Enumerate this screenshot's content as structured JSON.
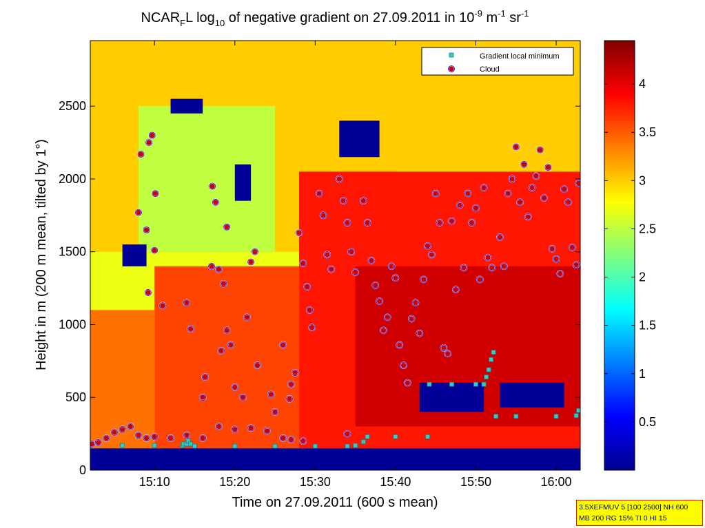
{
  "figure": {
    "title": {
      "prefix": "NCAR",
      "sub1": "F",
      "mid1": "L log",
      "sub2": "10",
      "mid2": " of negative gradient on 27.09.2011 in 10",
      "sup1": "-9",
      "mid3": " m",
      "sup2": "-1",
      "mid4": " sr",
      "sup3": "-1"
    },
    "info_box": {
      "line1": "3.5XEFMUV 5 [100 2500] NH 600",
      "line2": "MB 200 RG 15% TI 0 HI 15"
    }
  },
  "chart_data": {
    "type": "heatmap",
    "title": "NCAR_F L log10 of negative gradient on 27.09.2011 in 10^-9 m^-1 sr^-1",
    "xlabel": "Time on 27.09.2011 (600 s mean)",
    "ylabel": "Height in m (200 m mean, tilted by 1°)",
    "x_unit": "time of day",
    "x_range": [
      "15:02",
      "16:03"
    ],
    "x_ticks": [
      "15:10",
      "15:20",
      "15:30",
      "15:40",
      "15:50",
      "16:00"
    ],
    "x_tick_minutes": [
      10,
      20,
      30,
      40,
      50,
      60
    ],
    "x_range_minutes": [
      2,
      63
    ],
    "ylim": [
      0,
      2950
    ],
    "y_ticks": [
      0,
      500,
      1000,
      1500,
      2000,
      2500
    ],
    "colorbar": {
      "colormap": "jet",
      "range": [
        0,
        4.45
      ],
      "ticks": [
        0.5,
        1,
        1.5,
        2,
        2.5,
        3,
        3.5,
        4
      ],
      "tick_labels": [
        "0.5",
        "1",
        "1.5",
        "2",
        "2.5",
        "3",
        "3.5",
        "4"
      ],
      "colors": [
        "#00008f",
        "#0000ff",
        "#00ffff",
        "#ffff00",
        "#ff0000",
        "#800000"
      ]
    },
    "legend": {
      "placement": "top-right",
      "entries": [
        {
          "name": "Gradient local minimum",
          "marker": "square",
          "color": "#33cccc"
        },
        {
          "name": "Cloud",
          "marker": "circle",
          "color": "#cc0000",
          "edge": "#0000ff"
        }
      ]
    },
    "series": [
      {
        "name": "Gradient local minimum",
        "marker": "square",
        "color": "#33cccc",
        "points": [
          [
            2.0,
            170
          ],
          [
            6.0,
            170
          ],
          [
            10.0,
            170
          ],
          [
            13.5,
            170
          ],
          [
            13.6,
            180
          ],
          [
            14.0,
            180
          ],
          [
            14.2,
            200
          ],
          [
            14.5,
            180
          ],
          [
            15.0,
            165
          ],
          [
            20.0,
            165
          ],
          [
            25.0,
            165
          ],
          [
            30.0,
            165
          ],
          [
            34.0,
            165
          ],
          [
            35.0,
            170
          ],
          [
            36.0,
            195
          ],
          [
            36.5,
            230
          ],
          [
            40.0,
            230
          ],
          [
            44.0,
            230
          ],
          [
            44.2,
            590
          ],
          [
            47.0,
            590
          ],
          [
            50.0,
            590
          ],
          [
            51.0,
            590
          ],
          [
            51.3,
            640
          ],
          [
            51.6,
            690
          ],
          [
            51.9,
            760
          ],
          [
            52.2,
            810
          ],
          [
            52.5,
            370
          ],
          [
            55.0,
            370
          ],
          [
            60.0,
            370
          ],
          [
            62.5,
            375
          ],
          [
            62.8,
            410
          ]
        ]
      },
      {
        "name": "Cloud",
        "marker": "circle",
        "color": "#cc0000",
        "points": [
          [
            2.2,
            180
          ],
          [
            3.0,
            190
          ],
          [
            4.0,
            220
          ],
          [
            5.0,
            260
          ],
          [
            6.0,
            280
          ],
          [
            7.0,
            300
          ],
          [
            8.0,
            240
          ],
          [
            9.0,
            220
          ],
          [
            10.0,
            230
          ],
          [
            12.0,
            220
          ],
          [
            14.0,
            240
          ],
          [
            16.0,
            220
          ],
          [
            18.0,
            300
          ],
          [
            20.0,
            280
          ],
          [
            22.0,
            290
          ],
          [
            24.0,
            270
          ],
          [
            26.0,
            220
          ],
          [
            27.0,
            210
          ],
          [
            28.5,
            200
          ],
          [
            34.0,
            250
          ],
          [
            8.3,
            2170
          ],
          [
            9.3,
            2250
          ],
          [
            9.7,
            2300
          ],
          [
            10.1,
            1900
          ],
          [
            8.0,
            1770
          ],
          [
            9.0,
            1650
          ],
          [
            10.0,
            1510
          ],
          [
            9.2,
            1220
          ],
          [
            11.0,
            1130
          ],
          [
            14.0,
            1150
          ],
          [
            14.5,
            970
          ],
          [
            16.3,
            640
          ],
          [
            16.0,
            500
          ],
          [
            17.2,
            1950
          ],
          [
            17.6,
            1840
          ],
          [
            17.1,
            1400
          ],
          [
            18.0,
            1380
          ],
          [
            18.6,
            1280
          ],
          [
            19.0,
            1670
          ],
          [
            19.0,
            960
          ],
          [
            18.3,
            820
          ],
          [
            19.5,
            860
          ],
          [
            20.0,
            570
          ],
          [
            21.0,
            500
          ],
          [
            22.0,
            1430
          ],
          [
            22.5,
            1500
          ],
          [
            21.5,
            1050
          ],
          [
            22.8,
            720
          ],
          [
            24.5,
            520
          ],
          [
            25.0,
            400
          ],
          [
            26.0,
            860
          ],
          [
            27.0,
            590
          ],
          [
            27.5,
            670
          ],
          [
            26.8,
            490
          ],
          [
            28.0,
            1630
          ],
          [
            28.5,
            1420
          ],
          [
            29.0,
            1260
          ],
          [
            29.3,
            1100
          ],
          [
            29.6,
            980
          ],
          [
            30.5,
            1900
          ],
          [
            31.0,
            1750
          ],
          [
            31.5,
            1480
          ],
          [
            32.0,
            1380
          ],
          [
            33.0,
            2000
          ],
          [
            33.5,
            1850
          ],
          [
            34.0,
            1700
          ],
          [
            34.5,
            1500
          ],
          [
            35.0,
            1360
          ],
          [
            36.0,
            1850
          ],
          [
            36.5,
            1700
          ],
          [
            37.0,
            1440
          ],
          [
            37.5,
            1270
          ],
          [
            38.0,
            1160
          ],
          [
            38.5,
            960
          ],
          [
            39.0,
            1050
          ],
          [
            39.5,
            1400
          ],
          [
            40.0,
            1320
          ],
          [
            40.5,
            860
          ],
          [
            41.0,
            720
          ],
          [
            41.5,
            600
          ],
          [
            42.0,
            1040
          ],
          [
            42.5,
            1150
          ],
          [
            43.0,
            940
          ],
          [
            43.5,
            1310
          ],
          [
            44.0,
            1540
          ],
          [
            44.5,
            1480
          ],
          [
            45.0,
            1900
          ],
          [
            45.5,
            1700
          ],
          [
            46.0,
            840
          ],
          [
            46.5,
            800
          ],
          [
            47.0,
            1710
          ],
          [
            47.5,
            1240
          ],
          [
            48.0,
            1820
          ],
          [
            48.5,
            1390
          ],
          [
            49.0,
            1900
          ],
          [
            49.5,
            1700
          ],
          [
            50.0,
            1800
          ],
          [
            50.5,
            1310
          ],
          [
            51.0,
            1940
          ],
          [
            51.5,
            1460
          ],
          [
            52.0,
            1390
          ],
          [
            53.0,
            1600
          ],
          [
            53.5,
            1400
          ],
          [
            54.0,
            1900
          ],
          [
            54.5,
            2000
          ],
          [
            55.0,
            2220
          ],
          [
            55.5,
            1840
          ],
          [
            56.0,
            2100
          ],
          [
            56.5,
            1740
          ],
          [
            57.0,
            1940
          ],
          [
            57.5,
            2020
          ],
          [
            58.0,
            2200
          ],
          [
            58.5,
            1870
          ],
          [
            59.0,
            2080
          ],
          [
            59.5,
            1520
          ],
          [
            60.0,
            1450
          ],
          [
            60.5,
            1350
          ],
          [
            61.0,
            1930
          ],
          [
            61.5,
            1840
          ],
          [
            62.0,
            1530
          ],
          [
            62.5,
            1410
          ],
          [
            62.8,
            1970
          ]
        ]
      }
    ],
    "field_regions": [
      {
        "value": 2.7,
        "t0": 2,
        "t1": 63,
        "h0": 0,
        "h1": 2950
      },
      {
        "value": 3.0,
        "t0": 2,
        "t1": 63,
        "h0": 1500,
        "h1": 2950
      },
      {
        "value": 2.5,
        "t0": 8,
        "t1": 25,
        "h0": 1500,
        "h1": 2500
      },
      {
        "value": 3.4,
        "t0": 2,
        "t1": 10,
        "h0": 150,
        "h1": 1100
      },
      {
        "value": 3.6,
        "t0": 10,
        "t1": 28,
        "h0": 150,
        "h1": 1400
      },
      {
        "value": 3.8,
        "t0": 28,
        "t1": 63,
        "h0": 150,
        "h1": 2050
      },
      {
        "value": 4.1,
        "t0": 35,
        "t1": 63,
        "h0": 300,
        "h1": 1400
      },
      {
        "value": 3.0,
        "t0": 40,
        "t1": 63,
        "h0": 2050,
        "h1": 2950
      },
      {
        "value": 0.05,
        "t0": 2,
        "t1": 63,
        "h0": 0,
        "h1": 150
      },
      {
        "value": 0.05,
        "t0": 43,
        "t1": 51,
        "h0": 400,
        "h1": 600
      },
      {
        "value": 0.05,
        "t0": 53,
        "t1": 61,
        "h0": 430,
        "h1": 600
      },
      {
        "value": 0.05,
        "t0": 12,
        "t1": 16,
        "h0": 2450,
        "h1": 2550
      },
      {
        "value": 0.05,
        "t0": 33,
        "t1": 38,
        "h0": 2150,
        "h1": 2400
      },
      {
        "value": 0.05,
        "t0": 20,
        "t1": 22,
        "h0": 1850,
        "h1": 2100
      },
      {
        "value": 0.05,
        "t0": 6,
        "t1": 9,
        "h0": 1400,
        "h1": 1550
      }
    ]
  }
}
